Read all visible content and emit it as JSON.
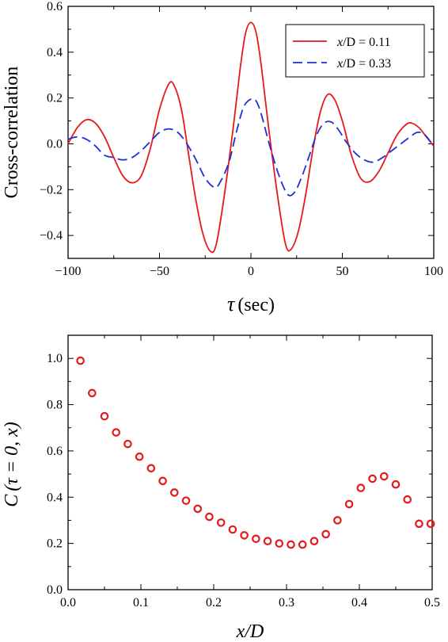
{
  "chart_data": [
    {
      "type": "line",
      "xlabel_symbol": "τ",
      "xlabel_unit": "(sec)",
      "ylabel": "Cross-correlation",
      "xlim": [
        -100,
        100
      ],
      "ylim": [
        -0.5,
        0.6
      ],
      "xticks": [
        -100,
        -50,
        0,
        50,
        100
      ],
      "xtick_labels": [
        "−100",
        "−50",
        "0",
        "50",
        "100"
      ],
      "yticks": [
        -0.4,
        -0.2,
        0.0,
        0.2,
        0.4,
        0.6
      ],
      "ytick_labels": [
        "−0.4",
        "−0.2",
        "0.0",
        "0.2",
        "0.4",
        "0.6"
      ],
      "legend_position": "top-right",
      "series": [
        {
          "name_var": "x",
          "name_rest": "/D = 0.11",
          "color": "#e41a1c",
          "style": "solid",
          "points": [
            [
              -100,
              0.0
            ],
            [
              -95,
              0.07
            ],
            [
              -90,
              0.105
            ],
            [
              -85,
              0.09
            ],
            [
              -80,
              0.03
            ],
            [
              -75,
              -0.06
            ],
            [
              -70,
              -0.14
            ],
            [
              -65,
              -0.17
            ],
            [
              -60,
              -0.14
            ],
            [
              -55,
              -0.02
            ],
            [
              -50,
              0.15
            ],
            [
              -45,
              0.26
            ],
            [
              -42,
              0.255
            ],
            [
              -38,
              0.15
            ],
            [
              -34,
              -0.05
            ],
            [
              -30,
              -0.25
            ],
            [
              -26,
              -0.4
            ],
            [
              -22,
              -0.47
            ],
            [
              -19,
              -0.44
            ],
            [
              -15,
              -0.25
            ],
            [
              -10,
              0.05
            ],
            [
              -6,
              0.32
            ],
            [
              -3,
              0.48
            ],
            [
              0,
              0.53
            ],
            [
              3,
              0.48
            ],
            [
              6,
              0.32
            ],
            [
              10,
              0.05
            ],
            [
              15,
              -0.25
            ],
            [
              19,
              -0.44
            ],
            [
              22,
              -0.46
            ],
            [
              26,
              -0.38
            ],
            [
              30,
              -0.22
            ],
            [
              34,
              -0.02
            ],
            [
              38,
              0.14
            ],
            [
              42,
              0.215
            ],
            [
              46,
              0.19
            ],
            [
              50,
              0.1
            ],
            [
              55,
              -0.05
            ],
            [
              60,
              -0.15
            ],
            [
              65,
              -0.165
            ],
            [
              70,
              -0.12
            ],
            [
              75,
              -0.04
            ],
            [
              80,
              0.04
            ],
            [
              85,
              0.085
            ],
            [
              88,
              0.09
            ],
            [
              92,
              0.07
            ],
            [
              96,
              0.03
            ],
            [
              100,
              -0.01
            ]
          ]
        },
        {
          "name_var": "x",
          "name_rest": "/D = 0.33",
          "color": "#1f2fd6",
          "style": "dashed",
          "points": [
            [
              -100,
              0.02
            ],
            [
              -95,
              0.03
            ],
            [
              -90,
              0.02
            ],
            [
              -85,
              -0.01
            ],
            [
              -80,
              -0.05
            ],
            [
              -75,
              -0.06
            ],
            [
              -70,
              -0.07
            ],
            [
              -65,
              -0.06
            ],
            [
              -60,
              -0.03
            ],
            [
              -55,
              0.01
            ],
            [
              -50,
              0.05
            ],
            [
              -45,
              0.065
            ],
            [
              -40,
              0.05
            ],
            [
              -35,
              0.0
            ],
            [
              -30,
              -0.07
            ],
            [
              -25,
              -0.15
            ],
            [
              -20,
              -0.19
            ],
            [
              -17,
              -0.17
            ],
            [
              -12,
              -0.08
            ],
            [
              -8,
              0.05
            ],
            [
              -4,
              0.16
            ],
            [
              0,
              0.195
            ],
            [
              3,
              0.185
            ],
            [
              6,
              0.12
            ],
            [
              10,
              0.0
            ],
            [
              15,
              -0.13
            ],
            [
              20,
              -0.22
            ],
            [
              24,
              -0.21
            ],
            [
              28,
              -0.14
            ],
            [
              32,
              -0.05
            ],
            [
              36,
              0.04
            ],
            [
              40,
              0.09
            ],
            [
              44,
              0.095
            ],
            [
              48,
              0.06
            ],
            [
              52,
              0.01
            ],
            [
              57,
              -0.04
            ],
            [
              62,
              -0.07
            ],
            [
              67,
              -0.08
            ],
            [
              72,
              -0.06
            ],
            [
              77,
              -0.03
            ],
            [
              82,
              0.0
            ],
            [
              87,
              0.03
            ],
            [
              91,
              0.05
            ],
            [
              95,
              0.04
            ],
            [
              100,
              -0.01
            ]
          ]
        }
      ]
    },
    {
      "type": "scatter",
      "ylabel_var": "C",
      "ylabel_args": "(τ = 0, x)",
      "xlabel": "x/D",
      "xlim": [
        0.0,
        0.5
      ],
      "ylim": [
        0.0,
        1.1
      ],
      "xticks": [
        0.0,
        0.1,
        0.2,
        0.3,
        0.4,
        0.5
      ],
      "xtick_labels": [
        "0.0",
        "0.1",
        "0.2",
        "0.3",
        "0.4",
        "0.5"
      ],
      "yticks": [
        0.0,
        0.2,
        0.4,
        0.6,
        0.8,
        1.0
      ],
      "ytick_labels": [
        "0.0",
        "0.2",
        "0.4",
        "0.6",
        "0.8",
        "1.0"
      ],
      "color": "#e41a1c",
      "points": [
        [
          0.017,
          0.99
        ],
        [
          0.033,
          0.85
        ],
        [
          0.05,
          0.75
        ],
        [
          0.066,
          0.68
        ],
        [
          0.082,
          0.63
        ],
        [
          0.098,
          0.575
        ],
        [
          0.114,
          0.525
        ],
        [
          0.13,
          0.47
        ],
        [
          0.146,
          0.42
        ],
        [
          0.162,
          0.385
        ],
        [
          0.178,
          0.35
        ],
        [
          0.194,
          0.315
        ],
        [
          0.21,
          0.29
        ],
        [
          0.226,
          0.26
        ],
        [
          0.242,
          0.235
        ],
        [
          0.258,
          0.22
        ],
        [
          0.274,
          0.21
        ],
        [
          0.29,
          0.2
        ],
        [
          0.306,
          0.195
        ],
        [
          0.322,
          0.195
        ],
        [
          0.338,
          0.21
        ],
        [
          0.354,
          0.24
        ],
        [
          0.37,
          0.3
        ],
        [
          0.386,
          0.37
        ],
        [
          0.402,
          0.44
        ],
        [
          0.418,
          0.48
        ],
        [
          0.434,
          0.49
        ],
        [
          0.45,
          0.455
        ],
        [
          0.466,
          0.39
        ],
        [
          0.482,
          0.285
        ],
        [
          0.498,
          0.285
        ]
      ]
    }
  ]
}
